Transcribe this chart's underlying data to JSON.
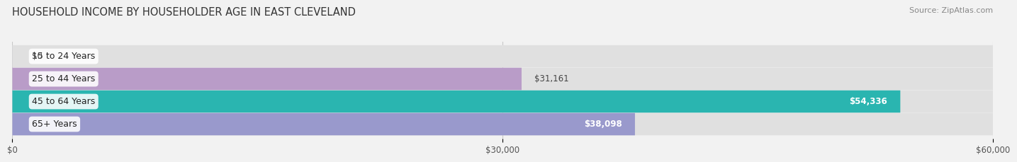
{
  "title": "HOUSEHOLD INCOME BY HOUSEHOLDER AGE IN EAST CLEVELAND",
  "source": "Source: ZipAtlas.com",
  "categories": [
    "15 to 24 Years",
    "25 to 44 Years",
    "45 to 64 Years",
    "65+ Years"
  ],
  "values": [
    0,
    31161,
    54336,
    38098
  ],
  "bar_colors": [
    "#a8c4e0",
    "#b99cc8",
    "#2ab5b0",
    "#9999cc"
  ],
  "label_colors": [
    "#333333",
    "#333333",
    "#333333",
    "#333333"
  ],
  "value_labels": [
    "$0",
    "$31,161",
    "$54,336",
    "$38,098"
  ],
  "value_inside": [
    false,
    false,
    true,
    true
  ],
  "xlim": [
    0,
    60000
  ],
  "xtick_labels": [
    "$0",
    "$30,000",
    "$60,000"
  ],
  "bar_height": 0.52,
  "background_color": "#f2f2f2",
  "bar_bg_color": "#e0e0e0",
  "title_fontsize": 10.5,
  "source_fontsize": 8,
  "label_fontsize": 9,
  "value_fontsize": 8.5
}
